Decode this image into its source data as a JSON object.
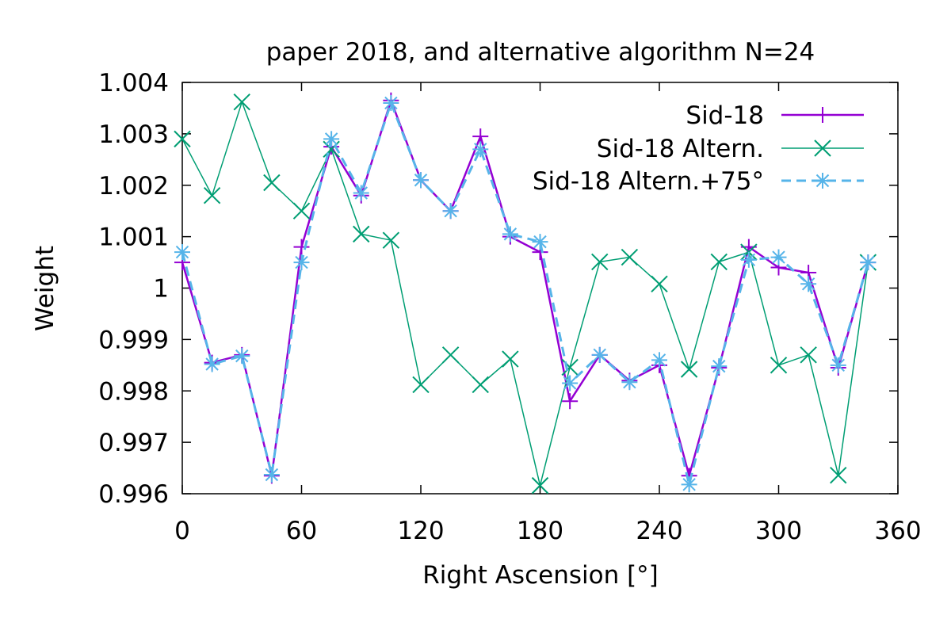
{
  "chart_data": {
    "type": "line",
    "title": "paper 2018, and alternative algorithm N=24",
    "xlabel": "Right Ascension [°]",
    "ylabel": "Weight",
    "xlim": [
      0,
      360
    ],
    "ylim": [
      0.996,
      1.004
    ],
    "xticks": [
      0,
      60,
      120,
      180,
      240,
      300,
      360
    ],
    "xtick_labels": [
      "0",
      "60",
      "120",
      "180",
      "240",
      "300",
      "360"
    ],
    "yticks": [
      0.996,
      0.997,
      0.998,
      0.999,
      1.0,
      1.001,
      1.002,
      1.003,
      1.004
    ],
    "ytick_labels": [
      "0.996",
      "0.997",
      "0.998",
      "0.999",
      "1",
      "1.001",
      "1.002",
      "1.003",
      "1.004"
    ],
    "grid": false,
    "legend_position": "top-right",
    "x": [
      0,
      15,
      30,
      45,
      60,
      75,
      90,
      105,
      120,
      135,
      150,
      165,
      180,
      195,
      210,
      225,
      240,
      255,
      270,
      285,
      300,
      315,
      330,
      345
    ],
    "series": [
      {
        "name": "Sid-18",
        "color": "#9400d3",
        "marker": "plus",
        "dash": "solid",
        "values": [
          1.0005,
          0.99855,
          0.9987,
          0.99635,
          1.0008,
          1.00275,
          1.0018,
          1.00365,
          1.0021,
          1.0015,
          1.00295,
          1.001,
          1.0007,
          0.9978,
          0.9987,
          0.9982,
          0.9985,
          0.99635,
          0.99845,
          1.0008,
          1.0004,
          1.0003,
          0.99845,
          1.0005
        ]
      },
      {
        "name": "Sid-18 Altern.",
        "color": "#009e73",
        "marker": "cross",
        "dash": "solid",
        "values": [
          1.0029,
          1.0018,
          1.00362,
          1.00205,
          1.0015,
          1.0027,
          1.00105,
          1.00093,
          0.99812,
          0.9987,
          0.99812,
          0.99862,
          0.99616,
          0.99846,
          1.00051,
          1.0006,
          1.00008,
          0.99842,
          1.00051,
          1.0007,
          0.9985,
          0.9987,
          0.99636,
          1.0005
        ]
      },
      {
        "name": "Sid-18 Altern.+75°",
        "color": "#56b4e9",
        "marker": "asterisk",
        "dash": "dashed",
        "values": [
          1.0007,
          0.99852,
          0.99868,
          0.99637,
          1.0005,
          1.0029,
          1.00185,
          1.0036,
          1.0021,
          1.0015,
          1.0027,
          1.00105,
          1.0009,
          0.99815,
          0.9987,
          0.99817,
          0.9986,
          0.99618,
          0.99848,
          1.00055,
          1.0006,
          1.00008,
          0.9985,
          1.0005
        ]
      }
    ]
  }
}
